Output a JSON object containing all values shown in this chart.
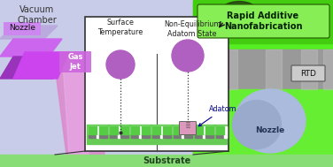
{
  "vacuum_text": "Vacuum\nChamber",
  "nozzle_left_text": "Nozzle",
  "gas_jet_text": "Gas\nJet",
  "box_left_title": "Surface\nTemperature",
  "box_right_title": "Non-Equilibrium\nAdatom State",
  "adatom_label": "Adatom",
  "rapid_label": "Rapid Additive\nNanofabrication",
  "rtd_label": "RTD",
  "nozzle_right_label": "Nozzle",
  "substrate_text": "Substrate",
  "ball_color": "#b060c0",
  "adatom_box_color": "#cc88aa",
  "surface_green": "#66cc55",
  "bg_left": "#c8cce8",
  "bg_right_green": "#55ee22",
  "substrate_bar": "#88dd66"
}
